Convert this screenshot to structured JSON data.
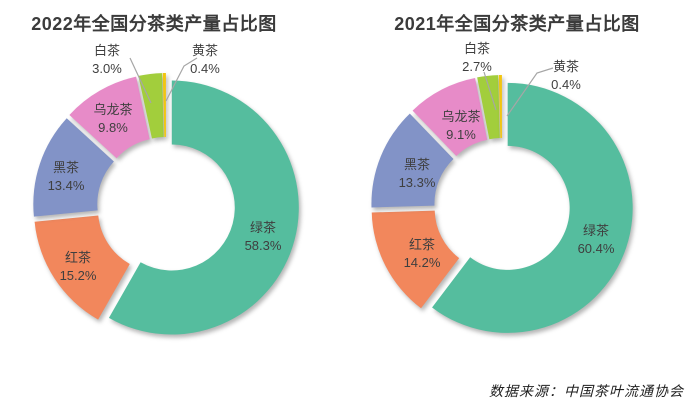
{
  "figure": {
    "background": "#ffffff",
    "label_color": "#3f3f3f",
    "title_color": "#3b3b3b",
    "leader_line_color": "#a6a6a6"
  },
  "source_note": "数据来源：中国茶叶流通协会",
  "chart_data": [
    {
      "type": "pie",
      "subtype": "exploded-doughnut",
      "title": "2022年全国分茶类产量占比图",
      "unit": "%",
      "categories": [
        "绿茶",
        "红茶",
        "黑茶",
        "乌龙茶",
        "白茶",
        "黄茶"
      ],
      "values": [
        58.3,
        15.2,
        13.4,
        9.8,
        3.0,
        0.4
      ],
      "colors": [
        "#55BD9E",
        "#F2875C",
        "#8293C7",
        "#E78BC8",
        "#A2CE3C",
        "#F2C511"
      ],
      "start_angle_deg": 0,
      "direction": "clockwise",
      "legend": false,
      "label_style": "category + percent beside slice; 白茶 and 黄茶 outside with gray leader lines"
    },
    {
      "type": "pie",
      "subtype": "exploded-doughnut",
      "title": "2021年全国分茶类产量占比图",
      "unit": "%",
      "categories": [
        "绿茶",
        "红茶",
        "黑茶",
        "乌龙茶",
        "白茶",
        "黄茶"
      ],
      "values": [
        60.4,
        14.2,
        13.3,
        9.1,
        2.7,
        0.4
      ],
      "colors": [
        "#55BD9E",
        "#F2875C",
        "#8293C7",
        "#E78BC8",
        "#A2CE3C",
        "#F2C511"
      ],
      "start_angle_deg": 0,
      "direction": "clockwise",
      "legend": false,
      "label_style": "category + percent beside slice; 白茶 and 黄茶 outside with gray leader lines"
    }
  ]
}
